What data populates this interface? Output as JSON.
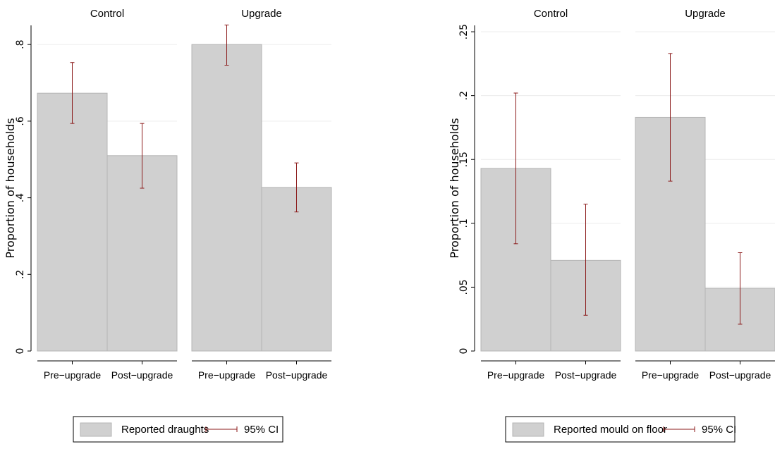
{
  "colors": {
    "bar_fill": "#d0d0d0",
    "bar_stroke": "#b4b4b4",
    "ci": "#8b1a1a",
    "grid": "#ececec",
    "panel_bg": "#ffffff"
  },
  "chart_data": [
    {
      "type": "bar",
      "ylabel": "Proportion of households",
      "ylim": [
        0,
        0.85
      ],
      "yticks": [
        0,
        0.2,
        0.4,
        0.6,
        0.8
      ],
      "ytick_labels": [
        "0",
        ".2",
        ".4",
        ".6",
        ".8"
      ],
      "categories": [
        "Pre−upgrade",
        "Post−upgrade"
      ],
      "panels": [
        {
          "title": "Control",
          "values": [
            0.673,
            0.51
          ],
          "ci_low": [
            0.594,
            0.425
          ],
          "ci_high": [
            0.753,
            0.594
          ]
        },
        {
          "title": "Upgrade",
          "values": [
            0.8,
            0.427
          ],
          "ci_low": [
            0.746,
            0.363
          ],
          "ci_high": [
            0.851,
            0.491
          ]
        }
      ],
      "legend": {
        "series": "Reported draughts",
        "ci": "95% CI"
      }
    },
    {
      "type": "bar",
      "ylabel": "Proportion of households",
      "ylim": [
        0,
        0.255
      ],
      "yticks": [
        0,
        0.05,
        0.1,
        0.15,
        0.2,
        0.25
      ],
      "ytick_labels": [
        "0",
        ".05",
        ".1",
        ".15",
        ".2",
        ".25"
      ],
      "categories": [
        "Pre−upgrade",
        "Post−upgrade"
      ],
      "panels": [
        {
          "title": "Control",
          "values": [
            0.143,
            0.071
          ],
          "ci_low": [
            0.084,
            0.028
          ],
          "ci_high": [
            0.202,
            0.115
          ]
        },
        {
          "title": "Upgrade",
          "values": [
            0.183,
            0.049
          ],
          "ci_low": [
            0.133,
            0.021
          ],
          "ci_high": [
            0.233,
            0.077
          ]
        }
      ],
      "legend": {
        "series": "Reported mould on floor",
        "ci": "95% CI"
      }
    }
  ]
}
